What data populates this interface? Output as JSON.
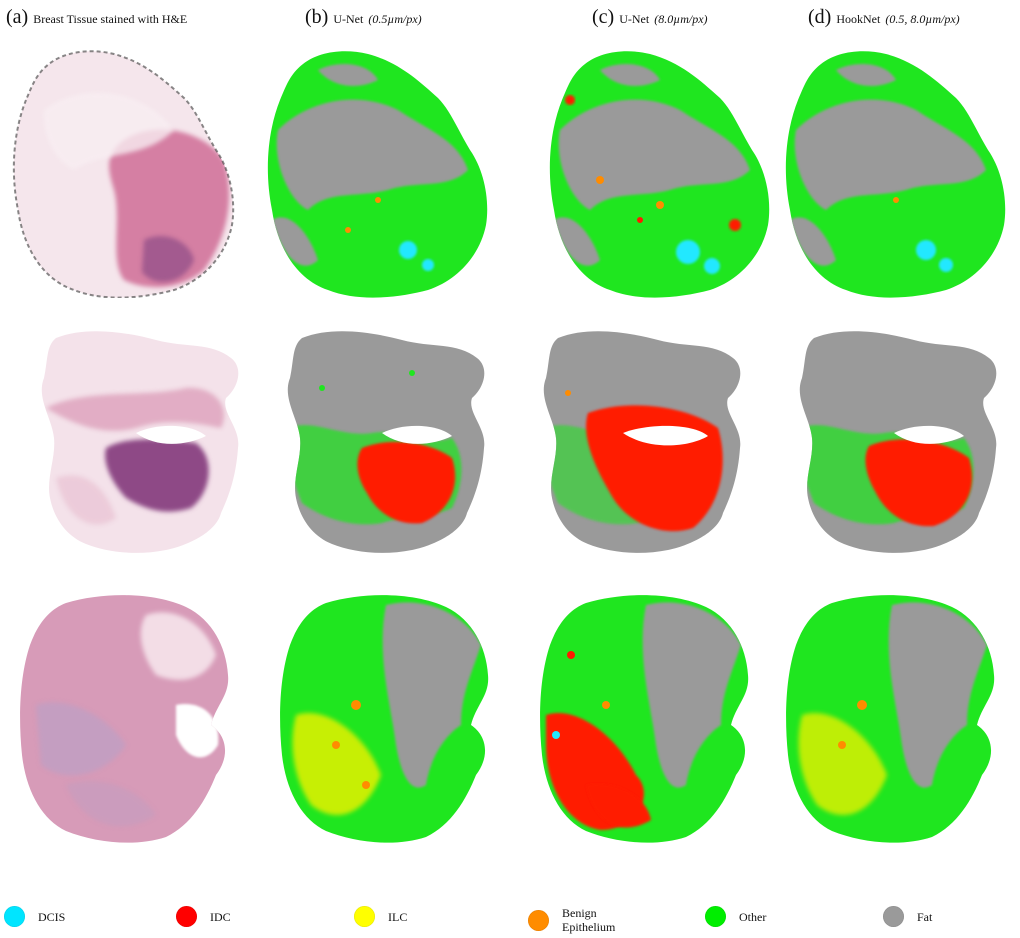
{
  "columns": [
    {
      "tag": "(a)",
      "caption": "Breast Tissue stained with H&E",
      "param": ""
    },
    {
      "tag": "(b)",
      "caption": "U-Net",
      "param": "(0.5µm/px)"
    },
    {
      "tag": "(c)",
      "caption": "U-Net",
      "param": "(8.0µm/px)"
    },
    {
      "tag": "(d)",
      "caption": "HookNet",
      "param": "(0.5, 8.0µm/px)"
    }
  ],
  "legend": [
    {
      "label": "DCIS",
      "color": "#00e5ff"
    },
    {
      "label": "IDC",
      "color": "#ff0000"
    },
    {
      "label": "ILC",
      "color": "#ffff00"
    },
    {
      "label": "Benign Epithelium",
      "label_line1": "Benign",
      "label_line2": "Epithelium",
      "color": "#ff8c00"
    },
    {
      "label": "Other",
      "color": "#00ee00"
    },
    {
      "label": "Fat",
      "color": "#9a9a9a"
    }
  ],
  "colors": {
    "he_pink": "#d98aa8",
    "he_dark": "#8e4a86",
    "he_light": "#f3dde6",
    "other": "#1fe61f",
    "fat": "#9a9a9a",
    "idc": "#ff1a00",
    "ilc": "#e6f000",
    "dcis": "#21e8ff",
    "benign": "#ff8c00"
  }
}
